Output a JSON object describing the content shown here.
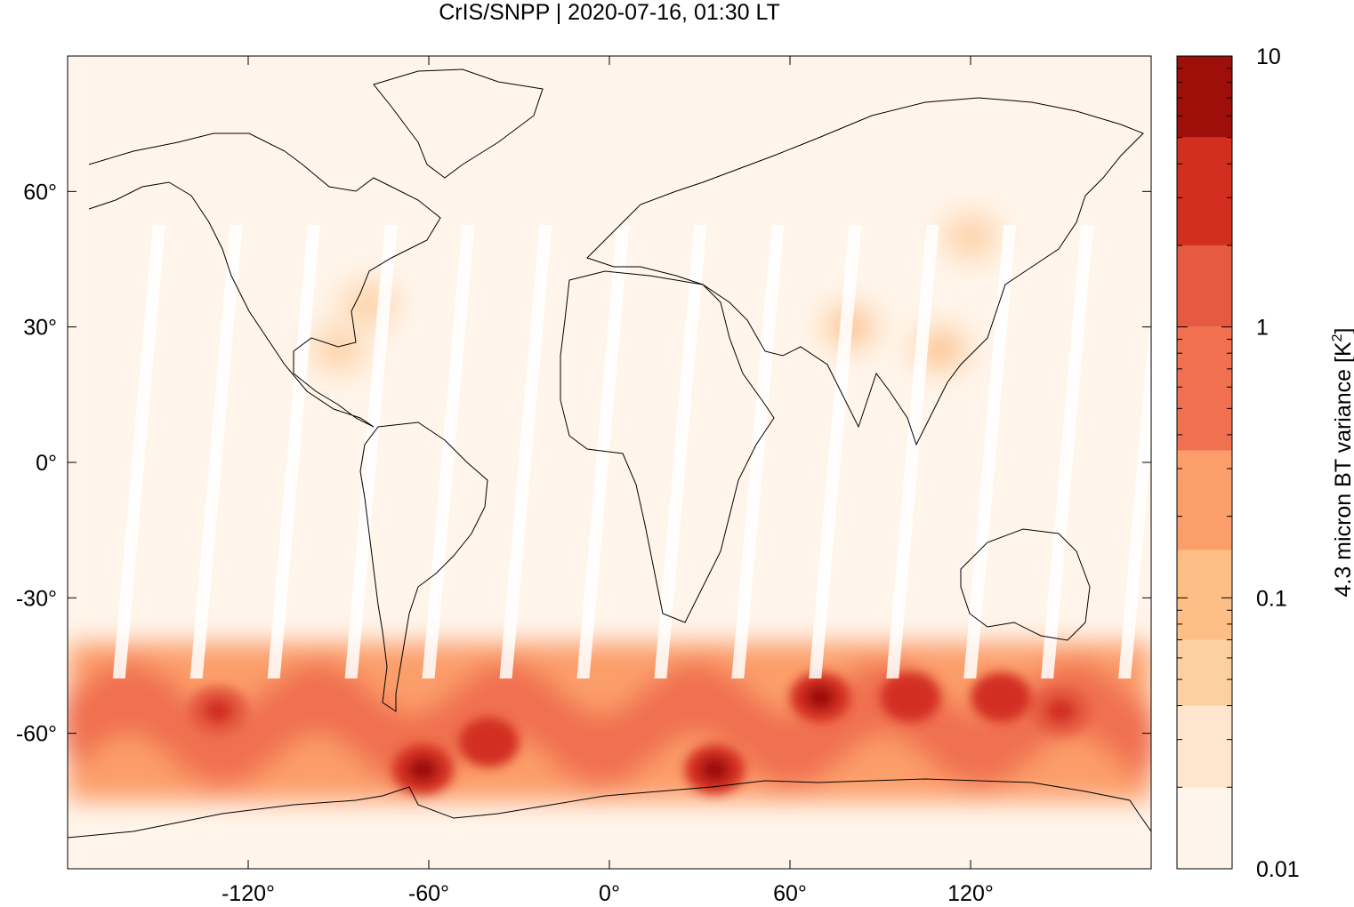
{
  "chart_data": {
    "type": "heatmap",
    "title": "CrIS/SNPP | 2020-07-16, 01:30 LT",
    "xlabel": "",
    "ylabel": "",
    "xlim": [
      -180,
      180
    ],
    "ylim": [
      -90,
      90
    ],
    "x_ticks": [
      {
        "value": -120,
        "label": "-120°"
      },
      {
        "value": -60,
        "label": "-60°"
      },
      {
        "value": 0,
        "label": "0°"
      },
      {
        "value": 60,
        "label": "60°"
      },
      {
        "value": 120,
        "label": "120°"
      }
    ],
    "y_ticks": [
      {
        "value": 60,
        "label": "60°"
      },
      {
        "value": 30,
        "label": "30°"
      },
      {
        "value": 0,
        "label": "0°"
      },
      {
        "value": -30,
        "label": "-30°"
      },
      {
        "value": -60,
        "label": "-60°"
      }
    ],
    "grid": false,
    "colorbar": {
      "label": "4.3 micron BT variance [K",
      "label_sup": "2",
      "label_end": "]",
      "scale": "log",
      "range": [
        0.01,
        10
      ],
      "ticks": [
        {
          "value": 10,
          "label": "10"
        },
        {
          "value": 1,
          "label": "1"
        },
        {
          "value": 0.1,
          "label": "0.1"
        },
        {
          "value": 0.01,
          "label": "0.01"
        }
      ],
      "levels": [
        {
          "lo": 0.01,
          "hi": 0.02,
          "color": "#fff5eb"
        },
        {
          "lo": 0.02,
          "hi": 0.04,
          "color": "#fee6ce"
        },
        {
          "lo": 0.04,
          "hi": 0.07,
          "color": "#fdd0a2"
        },
        {
          "lo": 0.07,
          "hi": 0.15,
          "color": "#fdbf86"
        },
        {
          "lo": 0.15,
          "hi": 0.35,
          "color": "#fc9e6a"
        },
        {
          "lo": 0.35,
          "hi": 1.0,
          "color": "#f07050"
        },
        {
          "lo": 1.0,
          "hi": 2.0,
          "color": "#e55a40"
        },
        {
          "lo": 2.0,
          "hi": 5.0,
          "color": "#d32f20"
        },
        {
          "lo": 5.0,
          "hi": 10.0,
          "color": "#9e0f0a"
        }
      ]
    },
    "background_value": 0.015,
    "field": [
      {
        "region": "southern ocean storm belt",
        "lon": [
          -180,
          180
        ],
        "lat": [
          -75,
          -40
        ],
        "value": 0.8
      },
      {
        "region": "drake passage / antarctic peninsula",
        "lon": -62,
        "lat": -68,
        "value": 5
      },
      {
        "region": "south atlantic",
        "lon": -40,
        "lat": -62,
        "value": 4
      },
      {
        "region": "south indian ocean",
        "lon": 70,
        "lat": -52,
        "value": 6
      },
      {
        "region": "south indian ocean east",
        "lon": 100,
        "lat": -52,
        "value": 4
      },
      {
        "region": "south of australia",
        "lon": 130,
        "lat": -52,
        "value": 4
      },
      {
        "region": "south pacific west",
        "lon": 150,
        "lat": -55,
        "value": 3
      },
      {
        "region": "south pacific",
        "lon": -130,
        "lat": -55,
        "value": 2
      },
      {
        "region": "weddell coast",
        "lon": 35,
        "lat": -68,
        "value": 5
      },
      {
        "region": "southeast asia / south china",
        "lon": 110,
        "lat": 25,
        "value": 0.07
      },
      {
        "region": "tibet / india",
        "lon": 80,
        "lat": 30,
        "value": 0.07
      },
      {
        "region": "gulf of mexico / caribbean",
        "lon": -90,
        "lat": 25,
        "value": 0.06
      },
      {
        "region": "eastern united states",
        "lon": -80,
        "lat": 35,
        "value": 0.05
      },
      {
        "region": "northeast asia",
        "lon": 120,
        "lat": 50,
        "value": 0.04
      }
    ],
    "orbit_gaps": {
      "count": 14,
      "note": "white swath gaps between satellite orbits"
    }
  }
}
